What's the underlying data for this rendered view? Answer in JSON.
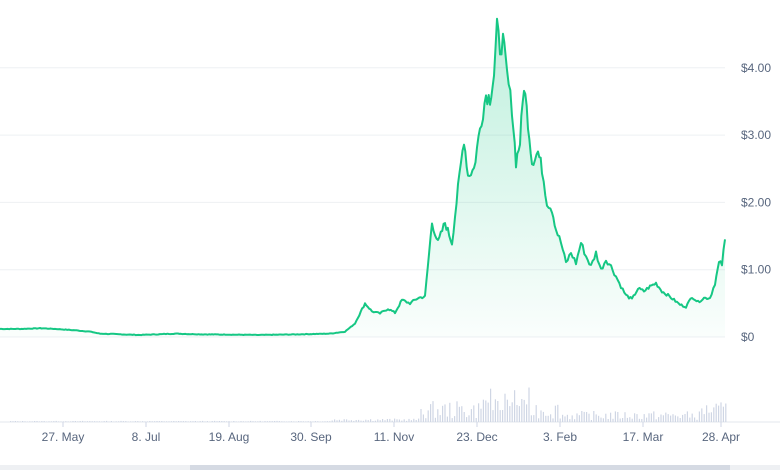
{
  "chart_data": {
    "type": "area",
    "title": "",
    "xlabel": "",
    "ylabel": "",
    "y_ticks": [
      {
        "value": 0,
        "label": "$0"
      },
      {
        "value": 1,
        "label": "$1.00"
      },
      {
        "value": 2,
        "label": "$2.00"
      },
      {
        "value": 3,
        "label": "$3.00"
      },
      {
        "value": 4,
        "label": "$4.00"
      }
    ],
    "x_ticks": [
      "27. May",
      "8. Jul",
      "19. Aug",
      "30. Sep",
      "11. Nov",
      "23. Dec",
      "3. Feb",
      "17. Mar",
      "28. Apr"
    ],
    "ylim": [
      0,
      4.65
    ],
    "grid": true,
    "line_color": "#16c784",
    "fill_color": "#16c784",
    "volume_color": "#cfd6e4",
    "series": [
      {
        "x": [
          "27. May",
          "8. Jul",
          "19. Aug",
          "30. Sep",
          "11. Nov",
          "23. Dec",
          "3. Feb",
          "17. Mar",
          "28. Apr"
        ],
        "values": [
          0.12,
          0.03,
          0.04,
          0.06,
          0.45,
          3.2,
          1.4,
          0.6,
          1.45
        ]
      }
    ]
  }
}
